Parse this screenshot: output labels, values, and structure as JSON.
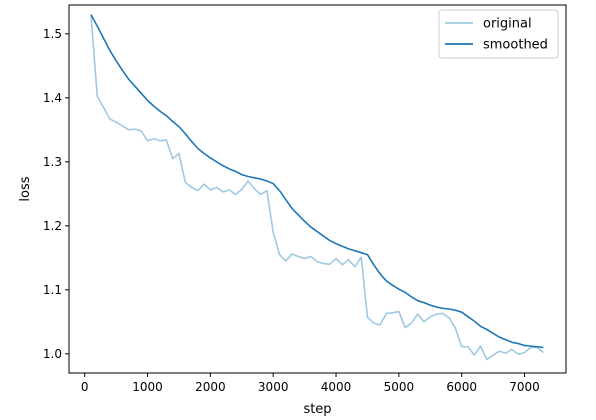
{
  "chart_data": {
    "type": "line",
    "title": "",
    "xlabel": "step",
    "ylabel": "loss",
    "xlim": [
      -250,
      7660
    ],
    "ylim": [
      0.97,
      1.545
    ],
    "xticks": [
      0,
      1000,
      2000,
      3000,
      4000,
      5000,
      6000,
      7000
    ],
    "xtick_labels": [
      "0",
      "1000",
      "2000",
      "3000",
      "4000",
      "5000",
      "6000",
      "7000"
    ],
    "yticks": [
      1.0,
      1.1,
      1.2,
      1.3,
      1.4,
      1.5
    ],
    "ytick_labels": [
      "1.0",
      "1.1",
      "1.2",
      "1.3",
      "1.4",
      "1.5"
    ],
    "grid": false,
    "legend_position": "upper right",
    "series": [
      {
        "name": "original",
        "color": "#9ecae1",
        "x": [
          100,
          200,
          300,
          400,
          500,
          600,
          700,
          800,
          900,
          1000,
          1100,
          1200,
          1300,
          1400,
          1500,
          1600,
          1700,
          1800,
          1900,
          2000,
          2100,
          2200,
          2300,
          2400,
          2500,
          2600,
          2700,
          2800,
          2900,
          3000,
          3100,
          3200,
          3300,
          3400,
          3500,
          3600,
          3700,
          3800,
          3900,
          4000,
          4100,
          4200,
          4300,
          4400,
          4500,
          4600,
          4700,
          4800,
          4900,
          5000,
          5100,
          5200,
          5300,
          5400,
          5500,
          5600,
          5700,
          5800,
          5900,
          6000,
          6100,
          6200,
          6300,
          6400,
          6500,
          6600,
          6700,
          6800,
          6900,
          7000,
          7100,
          7200,
          7300
        ],
        "y": [
          1.53,
          1.402,
          1.385,
          1.367,
          1.362,
          1.356,
          1.35,
          1.351,
          1.348,
          1.333,
          1.336,
          1.333,
          1.334,
          1.305,
          1.313,
          1.268,
          1.26,
          1.255,
          1.265,
          1.256,
          1.26,
          1.253,
          1.256,
          1.249,
          1.257,
          1.27,
          1.258,
          1.249,
          1.255,
          1.19,
          1.155,
          1.145,
          1.156,
          1.152,
          1.149,
          1.152,
          1.144,
          1.141,
          1.14,
          1.149,
          1.139,
          1.147,
          1.136,
          1.151,
          1.057,
          1.048,
          1.045,
          1.063,
          1.064,
          1.066,
          1.041,
          1.048,
          1.062,
          1.05,
          1.058,
          1.062,
          1.063,
          1.056,
          1.04,
          1.011,
          1.011,
          0.998,
          1.012,
          0.991,
          0.998,
          1.004,
          1.001,
          1.007,
          0.999,
          1.002,
          1.01,
          1.01,
          1.002
        ]
      },
      {
        "name": "smoothed",
        "color": "#1f77b4",
        "x": [
          100,
          200,
          300,
          400,
          500,
          600,
          700,
          800,
          900,
          1000,
          1100,
          1200,
          1300,
          1400,
          1500,
          1600,
          1700,
          1800,
          1900,
          2000,
          2100,
          2200,
          2300,
          2400,
          2500,
          2600,
          2700,
          2800,
          2900,
          3000,
          3100,
          3200,
          3300,
          3400,
          3500,
          3600,
          3700,
          3800,
          3900,
          4000,
          4100,
          4200,
          4300,
          4400,
          4500,
          4600,
          4700,
          4800,
          4900,
          5000,
          5100,
          5200,
          5300,
          5400,
          5500,
          5600,
          5700,
          5800,
          5900,
          6000,
          6100,
          6200,
          6300,
          6400,
          6500,
          6600,
          6700,
          6800,
          6900,
          7000,
          7100,
          7200,
          7300
        ],
        "y": [
          1.53,
          1.512,
          1.493,
          1.474,
          1.458,
          1.443,
          1.429,
          1.418,
          1.407,
          1.396,
          1.387,
          1.379,
          1.372,
          1.363,
          1.355,
          1.344,
          1.332,
          1.321,
          1.313,
          1.306,
          1.3,
          1.294,
          1.289,
          1.285,
          1.28,
          1.277,
          1.275,
          1.273,
          1.27,
          1.266,
          1.255,
          1.241,
          1.227,
          1.217,
          1.207,
          1.198,
          1.191,
          1.184,
          1.177,
          1.172,
          1.168,
          1.164,
          1.161,
          1.158,
          1.155,
          1.139,
          1.125,
          1.114,
          1.107,
          1.101,
          1.096,
          1.089,
          1.083,
          1.08,
          1.076,
          1.073,
          1.071,
          1.07,
          1.068,
          1.065,
          1.058,
          1.051,
          1.043,
          1.038,
          1.032,
          1.026,
          1.022,
          1.018,
          1.016,
          1.013,
          1.012,
          1.011,
          1.01
        ]
      }
    ]
  }
}
